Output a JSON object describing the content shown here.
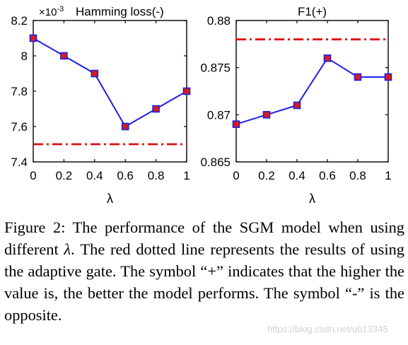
{
  "chart_data": [
    {
      "type": "line",
      "title": "Hamming loss(-)",
      "exponent_label": "×10-3",
      "xlabel": "λ",
      "ylabel": "",
      "x": [
        0,
        0.2,
        0.4,
        0.6,
        0.8,
        1
      ],
      "x_ticks": [
        "0",
        "0.2",
        "0.4",
        "0.6",
        "0.8",
        "1"
      ],
      "y_ticks": [
        "7.4",
        "7.6",
        "7.8",
        "8",
        "8.2"
      ],
      "ylim": [
        7.4,
        8.2
      ],
      "series": [
        {
          "values": [
            8.1,
            8.0,
            7.9,
            7.6,
            7.7,
            7.8
          ]
        }
      ],
      "reference_line": 7.5
    },
    {
      "type": "line",
      "title": "F1(+)",
      "xlabel": "λ",
      "ylabel": "",
      "x": [
        0,
        0.2,
        0.4,
        0.6,
        0.8,
        1
      ],
      "x_ticks": [
        "0",
        "0.2",
        "0.4",
        "0.6",
        "0.8",
        "1"
      ],
      "y_ticks": [
        "0.865",
        "0.87",
        "0.875",
        "0.88"
      ],
      "ylim": [
        0.865,
        0.88
      ],
      "series": [
        {
          "values": [
            0.869,
            0.87,
            0.871,
            0.876,
            0.874,
            0.874
          ]
        }
      ],
      "reference_line": 0.878
    }
  ],
  "style": {
    "line_color": "#1f1fe6",
    "marker_color": "#d81b1b",
    "reference_color": "#e01010"
  },
  "caption": {
    "prefix": "Figure 2: The performance of the SGM model when using different",
    "symbol": "λ",
    "suffix": ". The red dotted line represents the results of using the adaptive gate. The symbol “+” indicates that the higher the value is, the better the model performs. The symbol “-” is the opposite."
  },
  "watermark": "https://blog.csdn.net/u013345"
}
